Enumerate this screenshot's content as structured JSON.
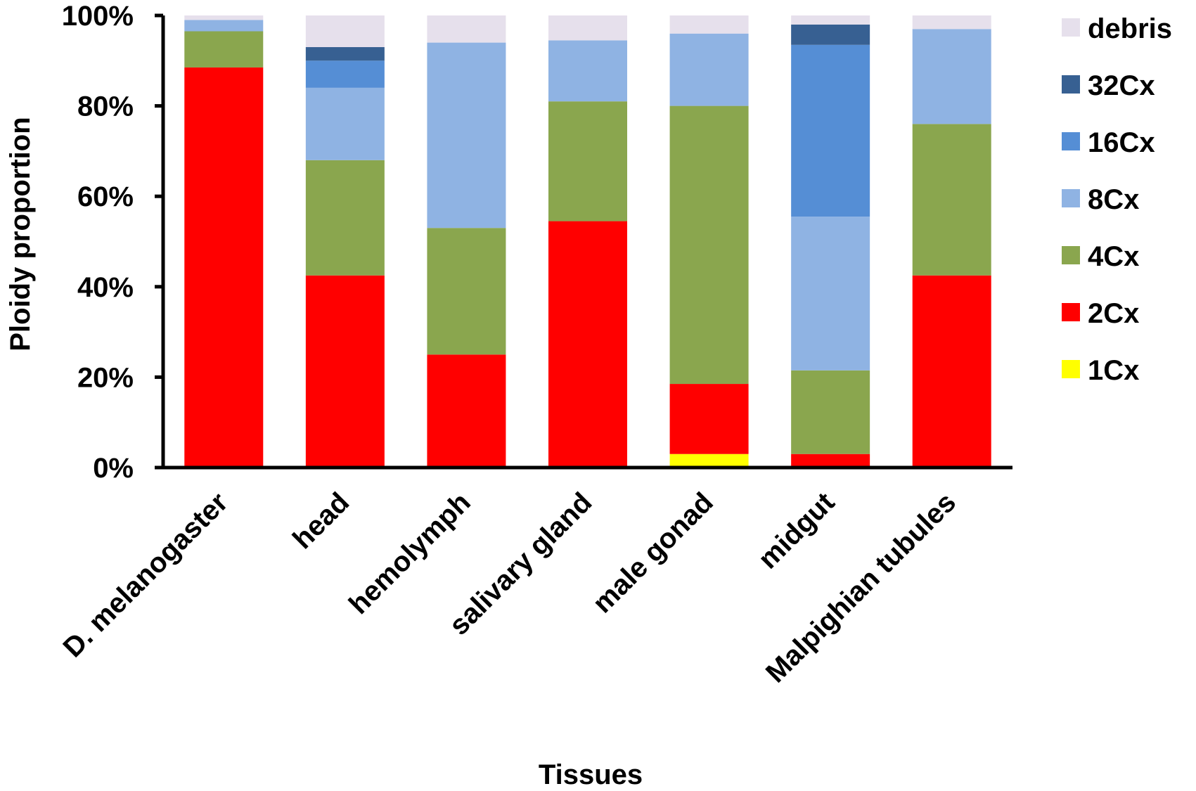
{
  "chart_data": {
    "type": "bar",
    "stacked": true,
    "percent_stacked": true,
    "xlabel": "Tissues",
    "ylabel": "Ploidy proportion",
    "ylim": [
      0,
      100
    ],
    "yticks": [
      "0%",
      "20%",
      "40%",
      "60%",
      "80%",
      "100%"
    ],
    "grid": false,
    "legend_position": "right",
    "categories": [
      "D. melanogaster",
      "head",
      "hemolymph",
      "salivary gland",
      "male gonad",
      "midgut",
      "Malpighian tubules"
    ],
    "series": [
      {
        "name": "1Cx",
        "color": "#ffff00",
        "values": [
          0,
          0,
          0,
          0,
          3,
          0,
          0
        ]
      },
      {
        "name": "2Cx",
        "color": "#ff0000",
        "values": [
          88.5,
          42.5,
          25,
          54.5,
          15.5,
          3,
          42.5
        ]
      },
      {
        "name": "4Cx",
        "color": "#8aa64e",
        "values": [
          8,
          25.5,
          28,
          26.5,
          61.5,
          18.5,
          33.5
        ]
      },
      {
        "name": "8Cx",
        "color": "#8fb3e3",
        "values": [
          2.5,
          16,
          41,
          13.5,
          16,
          34,
          21
        ]
      },
      {
        "name": "16Cx",
        "color": "#558ed5",
        "values": [
          0,
          6,
          0,
          0,
          0,
          38,
          0
        ]
      },
      {
        "name": "32Cx",
        "color": "#376092",
        "values": [
          0,
          3,
          0,
          0,
          0,
          4.5,
          0
        ]
      },
      {
        "name": "debris",
        "color": "#e6e0ec",
        "values": [
          1,
          7,
          6,
          5.5,
          4,
          2,
          3
        ]
      }
    ]
  }
}
